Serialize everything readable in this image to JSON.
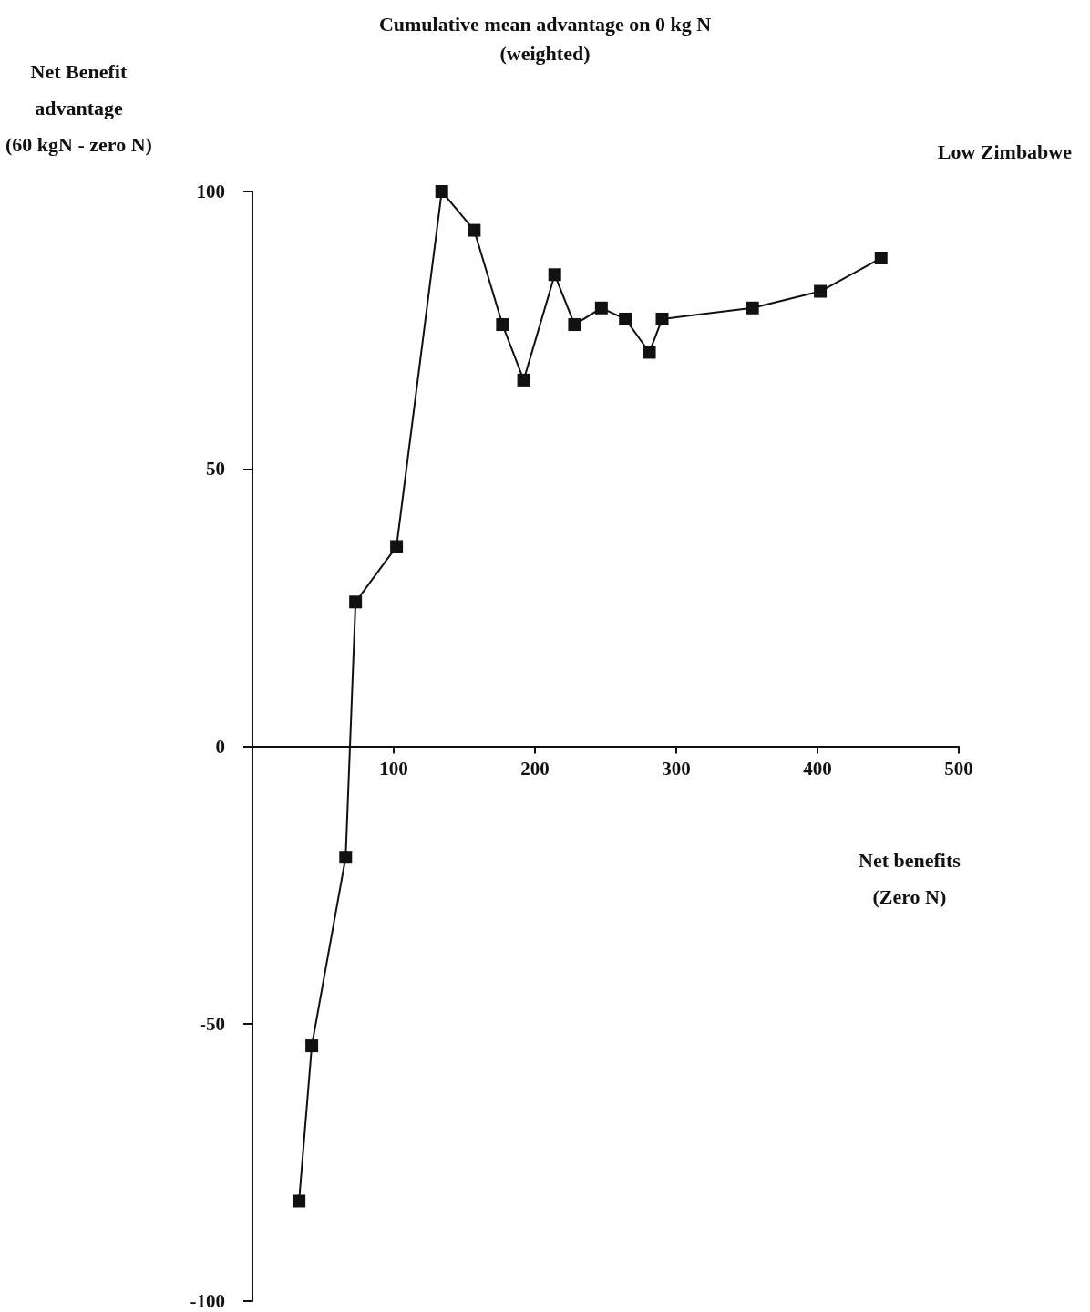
{
  "chart_data": {
    "type": "line",
    "title": "Cumulative mean advantage on 0 kg N\n(weighted)",
    "ylabel": "Net Benefit\nadvantage\n(60 kgN - zero N)",
    "xlabel": "Net benefits\n(Zero N)",
    "annotations": [
      "Low Zimbabwe"
    ],
    "series": [
      {
        "color": "#111111",
        "x": [
          33,
          42,
          66,
          73,
          102,
          134,
          157,
          177,
          192,
          214,
          228,
          247,
          264,
          281,
          290,
          354,
          402,
          445
        ],
        "values": [
          -82,
          -54,
          -20,
          26,
          36,
          100,
          93,
          76,
          66,
          85,
          76,
          79,
          77,
          71,
          77,
          79,
          82,
          88
        ]
      }
    ],
    "xlim": [
      0,
      500
    ],
    "xticks": [
      100,
      200,
      300,
      400,
      500
    ],
    "ylim": [
      -100,
      100
    ],
    "yticks": [
      -100,
      -50,
      0,
      50,
      100
    ],
    "grid": false,
    "marker": "square",
    "line_style": "solid"
  }
}
